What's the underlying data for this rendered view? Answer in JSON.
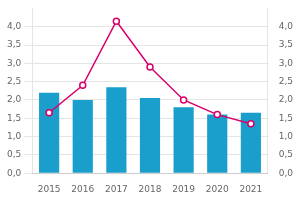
{
  "chart_data": {
    "type": "bar",
    "categories": [
      "2015",
      "2016",
      "2017",
      "2018",
      "2019",
      "2020",
      "2021"
    ],
    "series": [
      {
        "type": "bar",
        "color": "#1a9ecc",
        "values": [
          2.2,
          2.0,
          2.35,
          2.05,
          1.8,
          1.6,
          1.65
        ]
      },
      {
        "type": "line",
        "color": "#d9006c",
        "marker": "circle",
        "axis": "y2",
        "values": [
          1.65,
          2.4,
          4.15,
          2.9,
          2.0,
          1.6,
          1.35
        ]
      }
    ],
    "ylim": [
      0.0,
      4.5
    ],
    "yticks": [
      {
        "value": 0.0,
        "label": "0,0"
      },
      {
        "value": 0.5,
        "label": "0,5"
      },
      {
        "value": 1.0,
        "label": "1,0"
      },
      {
        "value": 1.5,
        "label": "1,5"
      },
      {
        "value": 2.0,
        "label": "2,0"
      },
      {
        "value": 2.5,
        "label": "2,5"
      },
      {
        "value": 3.0,
        "label": "3,0"
      },
      {
        "value": 3.5,
        "label": "3,5"
      },
      {
        "value": 4.0,
        "label": "4,0"
      }
    ],
    "y2lim": [
      0.0,
      4.5
    ],
    "y2ticks": [
      {
        "value": 0.0,
        "label": "0,0"
      },
      {
        "value": 0.5,
        "label": "0,5"
      },
      {
        "value": 1.0,
        "label": "1,0"
      },
      {
        "value": 1.5,
        "label": "1,5"
      },
      {
        "value": 2.0,
        "label": "2,0"
      },
      {
        "value": 2.5,
        "label": "2,5"
      },
      {
        "value": 3.0,
        "label": "3,0"
      },
      {
        "value": 3.5,
        "label": "3,5"
      },
      {
        "value": 4.0,
        "label": "4,0"
      }
    ],
    "grid": true
  }
}
